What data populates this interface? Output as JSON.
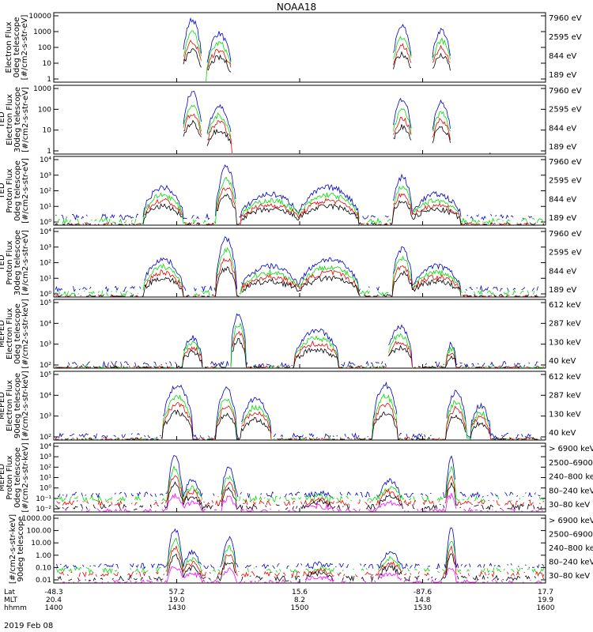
{
  "title": "NOAA18",
  "date_label": "2019 Feb 08",
  "colors": {
    "black": "#000000",
    "red": "#ee0000",
    "green": "#00dd00",
    "blue": "#0000cc",
    "magenta": "#ff00ff"
  },
  "chart_data": [
    {
      "type": "line",
      "ylabel": [
        "Electron Flux",
        "0deg telescope",
        "[#/cm2-s-str-eV]"
      ],
      "ytick_labels": [
        "1",
        "10",
        "100",
        "1000",
        "10000"
      ],
      "ylim": [
        1,
        10000
      ],
      "yscale": "log",
      "series": [
        {
          "name": "7960 eV",
          "color": "#000000"
        },
        {
          "name": "2595 eV",
          "color": "#ee0000"
        },
        {
          "name": "844 eV",
          "color": "#00dd00"
        },
        {
          "name": "189 eV",
          "color": "#0000cc"
        }
      ]
    },
    {
      "type": "line",
      "ylabel": [
        "TED",
        "Electron Flux",
        "30deg telescope",
        "[#/cm2-s-str-eV]"
      ],
      "ytick_labels": [
        "1",
        "10",
        "100",
        "1000"
      ],
      "ylim": [
        1,
        1000
      ],
      "yscale": "log",
      "series": [
        {
          "name": "7960 eV",
          "color": "#000000"
        },
        {
          "name": "2595 eV",
          "color": "#ee0000"
        },
        {
          "name": "844 eV",
          "color": "#00dd00"
        },
        {
          "name": "189 eV",
          "color": "#0000cc"
        }
      ]
    },
    {
      "type": "line",
      "ylabel": [
        "TED",
        "Proton Flux",
        "0deg telescope",
        "[#/cm2-s-str-eV]"
      ],
      "ytick_labels": [
        "10⁰",
        "10¹",
        "10²",
        "10³",
        "10⁴"
      ],
      "ylim": [
        1,
        10000
      ],
      "yscale": "log",
      "series": [
        {
          "name": "7960 eV",
          "color": "#000000"
        },
        {
          "name": "2595 eV",
          "color": "#ee0000"
        },
        {
          "name": "844 eV",
          "color": "#00dd00"
        },
        {
          "name": "189 eV",
          "color": "#0000cc"
        }
      ]
    },
    {
      "type": "line",
      "ylabel": [
        "TED",
        "Proton Flux",
        "30deg telescope",
        "[#/cm2-s-str-eV]"
      ],
      "ytick_labels": [
        "10⁰",
        "10¹",
        "10²",
        "10³",
        "10⁴"
      ],
      "ylim": [
        1,
        10000
      ],
      "yscale": "log",
      "series": [
        {
          "name": "7960 eV",
          "color": "#000000"
        },
        {
          "name": "2595 eV",
          "color": "#ee0000"
        },
        {
          "name": "844 eV",
          "color": "#00dd00"
        },
        {
          "name": "189 eV",
          "color": "#0000cc"
        }
      ]
    },
    {
      "type": "line",
      "ylabel": [
        "MEPED",
        "Electron Flux",
        "0deg telescope",
        "[#/cm2-s-str-keV]"
      ],
      "ytick_labels": [
        "10²",
        "10³",
        "10⁴",
        "10⁵"
      ],
      "ylim": [
        100,
        100000
      ],
      "yscale": "log",
      "series": [
        {
          "name": "612 keV",
          "color": "#000000"
        },
        {
          "name": "287 keV",
          "color": "#ee0000"
        },
        {
          "name": "130 keV",
          "color": "#00dd00"
        },
        {
          "name": "40 keV",
          "color": "#0000cc"
        }
      ]
    },
    {
      "type": "line",
      "ylabel": [
        "MEPED",
        "Electron Flux",
        "90deg telescope",
        "[#/cm2-s-str-keV]"
      ],
      "ytick_labels": [
        "10²",
        "10³",
        "10⁴",
        "10⁵"
      ],
      "ylim": [
        100,
        100000
      ],
      "yscale": "log",
      "series": [
        {
          "name": "612 keV",
          "color": "#000000"
        },
        {
          "name": "287 keV",
          "color": "#ee0000"
        },
        {
          "name": "130 keV",
          "color": "#00dd00"
        },
        {
          "name": "40 keV",
          "color": "#0000cc"
        }
      ]
    },
    {
      "type": "line",
      "ylabel": [
        "MEPED",
        "Proton Flux",
        "0deg telescope",
        "[#/cm2-s-str-keV]"
      ],
      "ytick_labels": [
        "10⁻²",
        "10⁻¹",
        "10⁰",
        "10¹",
        "10²",
        "10³",
        "10⁴"
      ],
      "ylim": [
        0.01,
        10000
      ],
      "yscale": "log",
      "series": [
        {
          "name": "> 6900 keV",
          "color": "#ff00ff"
        },
        {
          "name": "2500–6900",
          "color": "#000000"
        },
        {
          "name": "240–800 keV",
          "color": "#ee0000"
        },
        {
          "name": "80–240 keV",
          "color": "#00dd00"
        },
        {
          "name": "30–80 keV",
          "color": "#0000cc"
        }
      ]
    },
    {
      "type": "line",
      "ylabel": [
        "[#/cm2-s-str-keV]",
        "90deg telescope"
      ],
      "ytick_labels": [
        "0.01",
        "0.10",
        "1.00",
        "10.00",
        "100.00",
        "1000.00"
      ],
      "ylim": [
        0.01,
        3000
      ],
      "yscale": "log",
      "series": [
        {
          "name": "> 6900 keV",
          "color": "#ff00ff"
        },
        {
          "name": "2500–6900",
          "color": "#000000"
        },
        {
          "name": "240–800 keV",
          "color": "#ee0000"
        },
        {
          "name": "80–240 keV",
          "color": "#00dd00"
        },
        {
          "name": "30–80 keV",
          "color": "#0000cc"
        }
      ]
    }
  ],
  "x_axis": {
    "row_labels": [
      "Lat",
      "MLT",
      "hhmm"
    ],
    "ticks": [
      {
        "lat": "-48.3",
        "mlt": "20.4",
        "hhmm": "1400"
      },
      {
        "lat": "57.2",
        "mlt": "19.0",
        "hhmm": "1430"
      },
      {
        "lat": "15.6",
        "mlt": "8.2",
        "hhmm": "1500"
      },
      {
        "lat": "-87.6",
        "mlt": "14.8",
        "hhmm": "1530"
      },
      {
        "lat": "17.7",
        "mlt": "19.9",
        "hhmm": "1600"
      }
    ]
  }
}
